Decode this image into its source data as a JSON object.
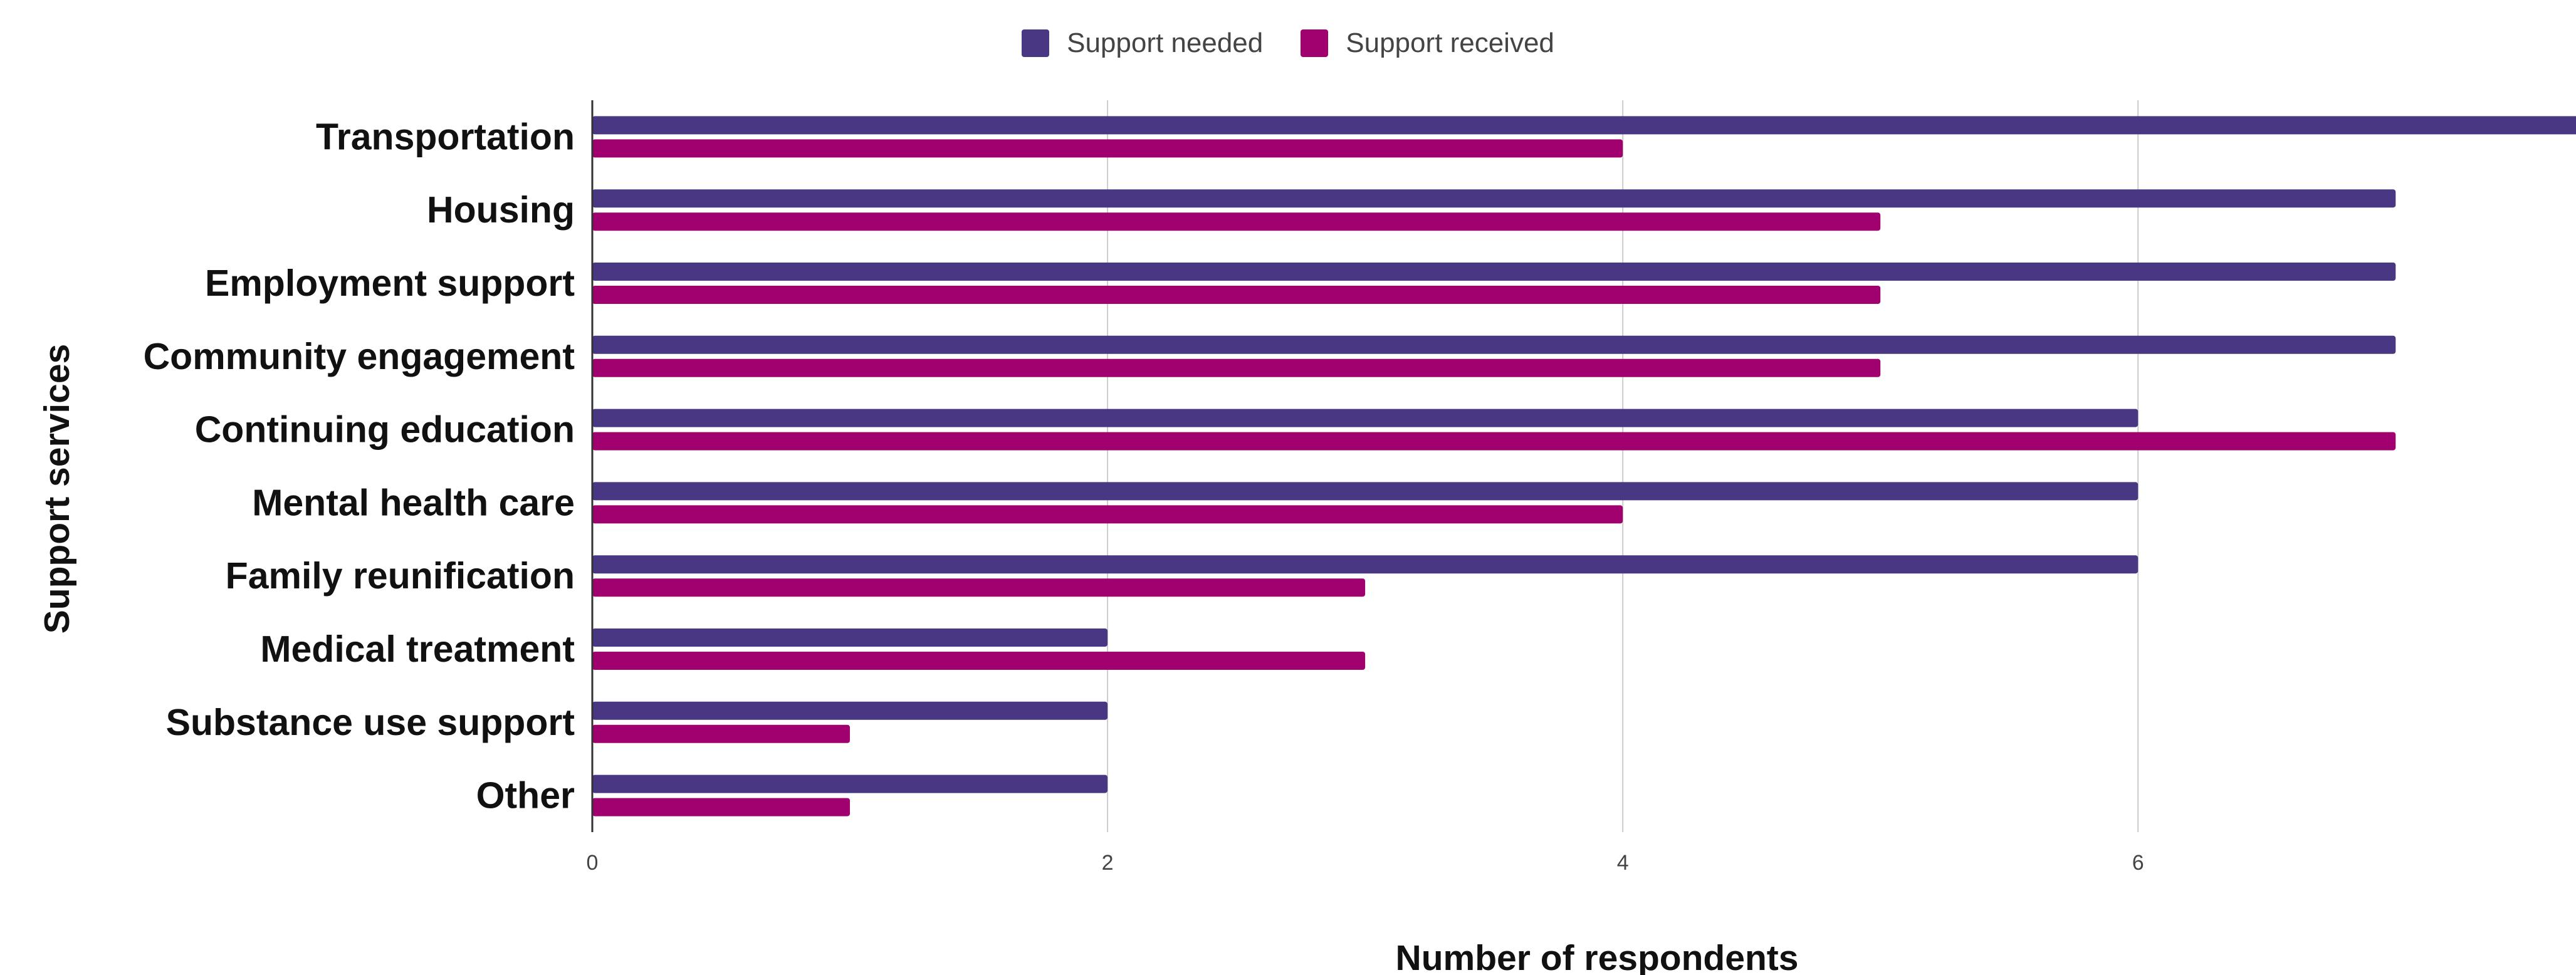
{
  "chart_data": {
    "type": "bar",
    "orientation": "horizontal",
    "xlabel": "Number of respondents",
    "ylabel": "Support services",
    "xlim": [
      0,
      7.7
    ],
    "x_ticks": [
      "0",
      "2",
      "4",
      "6"
    ],
    "grid": true,
    "legend_position": "top-center",
    "categories": [
      "Transportation",
      "Housing",
      "Employment support",
      "Community engagement",
      "Continuing education",
      "Mental health care",
      "Family reunification",
      "Medical treatment",
      "Substance use support",
      "Other"
    ],
    "series": [
      {
        "name": "Support needed",
        "color": "#4a3784",
        "values": [
          8,
          7,
          7,
          7,
          6,
          6,
          6,
          2,
          2,
          2
        ]
      },
      {
        "name": "Support received",
        "color": "#a1006f",
        "values": [
          4,
          5,
          5,
          5,
          7,
          4,
          3,
          3,
          1,
          1
        ]
      }
    ]
  }
}
